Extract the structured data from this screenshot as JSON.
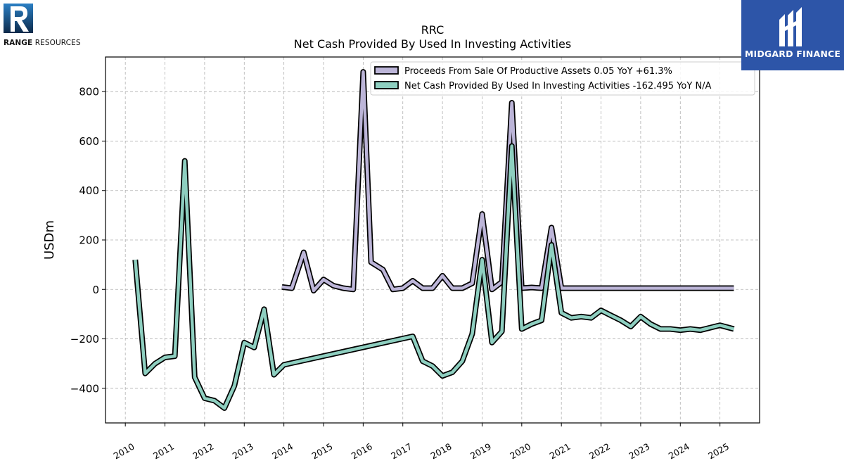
{
  "logos": {
    "left": {
      "text_bold": "RANGE",
      "text_rest": " RESOURCES",
      "color": "#1a5fa8"
    },
    "right": {
      "text": "MIDGARD FINANCE",
      "bg": "#2d55a8"
    }
  },
  "chart_data": {
    "type": "line",
    "title": "RRC",
    "subtitle": "Net Cash Provided By Used In Investing Activities",
    "ylabel": "USDm",
    "xlabel": "",
    "ylim": [
      -540,
      940
    ],
    "xlim": [
      2009.5,
      2026.0
    ],
    "yticks": [
      -400,
      -200,
      0,
      200,
      400,
      600,
      800
    ],
    "ytick_labels": [
      "−400",
      "−200",
      "0",
      "200",
      "400",
      "600",
      "800"
    ],
    "xticks": [
      2010,
      2011,
      2012,
      2013,
      2014,
      2015,
      2016,
      2017,
      2018,
      2019,
      2020,
      2021,
      2022,
      2023,
      2024,
      2025
    ],
    "xtick_labels": [
      "2010",
      "2011",
      "2012",
      "2013",
      "2014",
      "2015",
      "2016",
      "2017",
      "2018",
      "2019",
      "2020",
      "2021",
      "2022",
      "2023",
      "2024",
      "2025"
    ],
    "grid": true,
    "legend_position": "top-right",
    "series": [
      {
        "name": "Proceeds From Sale Of Productive Assets  0.05 YoY +61.3%",
        "color": "#bcb5d8",
        "x": [
          2013.95,
          2014.2,
          2014.5,
          2014.75,
          2015.0,
          2015.25,
          2015.5,
          2015.75,
          2016.0,
          2016.2,
          2016.5,
          2016.75,
          2017.0,
          2017.25,
          2017.5,
          2017.75,
          2018.0,
          2018.25,
          2018.5,
          2018.75,
          2019.0,
          2019.25,
          2019.5,
          2019.75,
          2020.0,
          2020.25,
          2020.5,
          2020.75,
          2021.0,
          2021.5,
          2022.0,
          2022.5,
          2023.0,
          2023.5,
          2024.0,
          2024.5,
          2025.0,
          2025.35
        ],
        "y": [
          10,
          5,
          150,
          -5,
          40,
          15,
          5,
          0,
          880,
          110,
          80,
          0,
          5,
          35,
          5,
          5,
          55,
          5,
          5,
          25,
          305,
          0,
          30,
          755,
          5,
          8,
          5,
          250,
          5,
          5,
          5,
          5,
          5,
          5,
          5,
          5,
          5,
          5
        ]
      },
      {
        "name": "Net Cash Provided By Used In Investing Activities  -162.495 YoY N/A",
        "color": "#8ecfc0",
        "x": [
          2010.25,
          2010.5,
          2010.75,
          2011.0,
          2011.25,
          2011.5,
          2011.75,
          2012.0,
          2012.25,
          2012.5,
          2012.75,
          2013.0,
          2013.25,
          2013.5,
          2013.75,
          2014.0,
          2017.25,
          2017.5,
          2017.75,
          2018.0,
          2018.25,
          2018.5,
          2018.75,
          2019.0,
          2019.25,
          2019.5,
          2019.75,
          2020.0,
          2020.25,
          2020.5,
          2020.75,
          2021.0,
          2021.25,
          2021.5,
          2021.75,
          2022.0,
          2022.25,
          2022.5,
          2022.75,
          2023.0,
          2023.25,
          2023.5,
          2023.75,
          2024.0,
          2024.25,
          2024.5,
          2024.75,
          2025.0,
          2025.35
        ],
        "y": [
          120,
          -340,
          -300,
          -275,
          -270,
          520,
          -355,
          -440,
          -450,
          -480,
          -390,
          -215,
          -235,
          -80,
          -345,
          -305,
          -190,
          -290,
          -310,
          -350,
          -335,
          -290,
          -180,
          120,
          -215,
          -170,
          580,
          -160,
          -140,
          -125,
          180,
          -95,
          -115,
          -110,
          -115,
          -85,
          -105,
          -125,
          -150,
          -110,
          -140,
          -160,
          -160,
          -165,
          -160,
          -165,
          -155,
          -145,
          -160
        ]
      }
    ]
  }
}
